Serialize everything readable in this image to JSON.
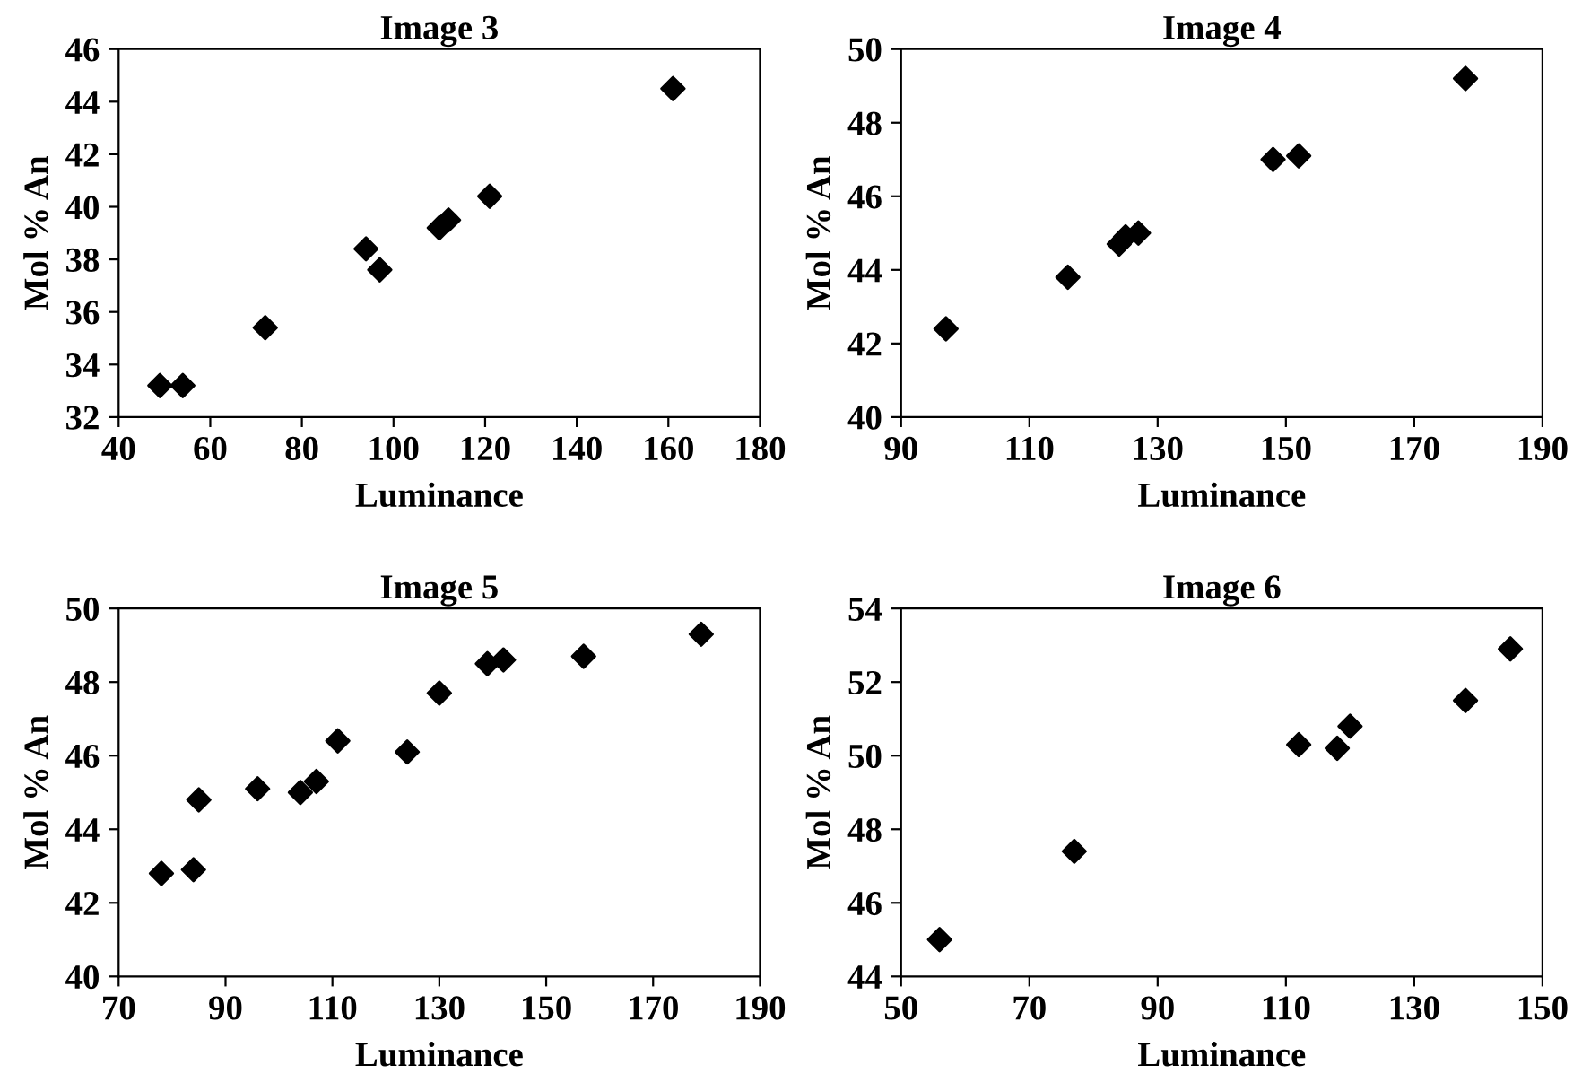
{
  "chart_data": [
    {
      "type": "scatter",
      "title": "Image 3",
      "xlabel": "Luminance",
      "ylabel": "Mol % An",
      "x": [
        49,
        54,
        72,
        94,
        97,
        110,
        112,
        121,
        161
      ],
      "values": [
        33.2,
        33.2,
        35.4,
        38.4,
        37.6,
        39.2,
        39.5,
        40.4,
        44.5
      ],
      "color": "#000000",
      "marker": "diamond",
      "xlim": [
        40,
        180
      ],
      "xticks": [
        40,
        60,
        80,
        100,
        120,
        140,
        160,
        180
      ],
      "ylim": [
        32,
        46
      ],
      "yticks": [
        32,
        34,
        36,
        38,
        40,
        42,
        44,
        46
      ],
      "grid": false,
      "legend": false
    },
    {
      "type": "scatter",
      "title": "Image 4",
      "xlabel": "Luminance",
      "ylabel": "Mol % An",
      "x": [
        97,
        116,
        124,
        125,
        127,
        148,
        152,
        178
      ],
      "values": [
        42.4,
        43.8,
        44.7,
        44.9,
        45.0,
        47.0,
        47.1,
        49.2
      ],
      "color": "#000000",
      "marker": "diamond",
      "xlim": [
        90,
        190
      ],
      "xticks": [
        90,
        110,
        130,
        150,
        170,
        190
      ],
      "ylim": [
        40,
        50
      ],
      "yticks": [
        40,
        42,
        44,
        46,
        48,
        50
      ],
      "grid": false,
      "legend": false
    },
    {
      "type": "scatter",
      "title": "Image 5",
      "xlabel": "Luminance",
      "ylabel": "Mol % An",
      "x": [
        78,
        84,
        85,
        96,
        104,
        107,
        111,
        124,
        130,
        139,
        142,
        157,
        179
      ],
      "values": [
        42.8,
        42.9,
        44.8,
        45.1,
        45.0,
        45.3,
        46.4,
        46.1,
        47.7,
        48.5,
        48.6,
        48.7,
        49.3
      ],
      "color": "#000000",
      "marker": "diamond",
      "xlim": [
        70,
        190
      ],
      "xticks": [
        70,
        90,
        110,
        130,
        150,
        170,
        190
      ],
      "ylim": [
        40,
        50
      ],
      "yticks": [
        40,
        42,
        44,
        46,
        48,
        50
      ],
      "grid": false,
      "legend": false
    },
    {
      "type": "scatter",
      "title": "Image 6",
      "xlabel": "Luminance",
      "ylabel": "Mol % An",
      "x": [
        56,
        77,
        112,
        118,
        120,
        138,
        145
      ],
      "values": [
        45.0,
        47.4,
        50.3,
        50.2,
        50.8,
        51.5,
        52.9
      ],
      "color": "#000000",
      "marker": "diamond",
      "xlim": [
        50,
        150
      ],
      "xticks": [
        50,
        70,
        90,
        110,
        130,
        150
      ],
      "ylim": [
        44,
        54
      ],
      "yticks": [
        44,
        46,
        48,
        50,
        52,
        54
      ],
      "grid": false,
      "legend": false
    }
  ]
}
